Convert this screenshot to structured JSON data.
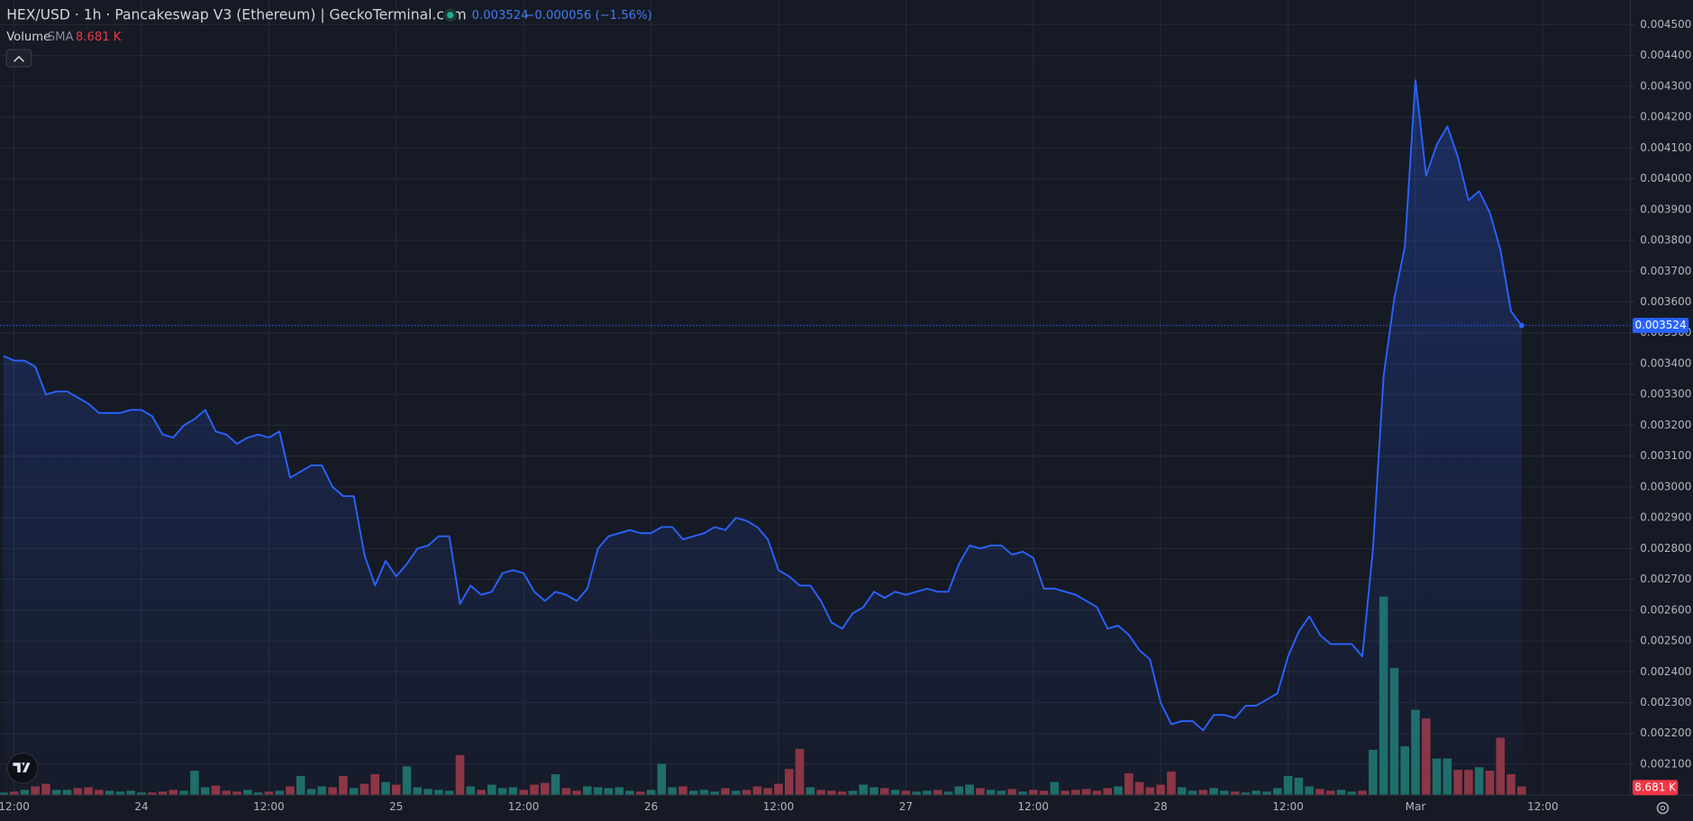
{
  "chart_data": {
    "type": "line",
    "title": "HEX/USD · 1h · Pancakeswap V3 (Ethereum) | GeckoTerminal.com",
    "change_label": "−0.000056 (−1.56%)",
    "volume_label": "Volume",
    "volume_sma_label": "SMA",
    "volume_sma": {
      "value": 8.681,
      "label": "8.681 K"
    },
    "categories": [
      null,
      "12:00",
      null,
      null,
      null,
      null,
      null,
      null,
      null,
      null,
      null,
      null,
      null,
      "24",
      null,
      null,
      null,
      null,
      null,
      null,
      null,
      null,
      null,
      null,
      null,
      "12:00",
      null,
      null,
      null,
      null,
      null,
      null,
      null,
      null,
      null,
      null,
      null,
      "25",
      null,
      null,
      null,
      null,
      null,
      null,
      null,
      null,
      null,
      null,
      null,
      "12:00",
      null,
      null,
      null,
      null,
      null,
      null,
      null,
      null,
      null,
      null,
      null,
      "26",
      null,
      null,
      null,
      null,
      null,
      null,
      null,
      null,
      null,
      null,
      null,
      "12:00",
      null,
      null,
      null,
      null,
      null,
      null,
      null,
      null,
      null,
      null,
      null,
      "27",
      null,
      null,
      null,
      null,
      null,
      null,
      null,
      null,
      null,
      null,
      null,
      "12:00",
      null,
      null,
      null,
      null,
      null,
      null,
      null,
      null,
      null,
      null,
      null,
      "28",
      null,
      null,
      null,
      null,
      null,
      null,
      null,
      null,
      null,
      null,
      null,
      "12:00",
      null,
      null,
      null,
      null,
      null,
      null,
      null,
      null,
      null,
      null,
      null,
      "Mar",
      null,
      null,
      null,
      null,
      null,
      null,
      null,
      null,
      null,
      null,
      null,
      "12:00"
    ],
    "series": [
      {
        "name": "HEX/USD",
        "color": "#2962ff",
        "values": [
          0.003425,
          0.00341,
          0.00341,
          0.00339,
          0.0033,
          0.00331,
          0.00331,
          0.00329,
          0.00327,
          0.00324,
          0.00324,
          0.00324,
          0.00325,
          0.00325,
          0.00323,
          0.00317,
          0.00316,
          0.0032,
          0.00322,
          0.00325,
          0.00318,
          0.00317,
          0.00314,
          0.00316,
          0.00317,
          0.00316,
          0.00318,
          0.00303,
          0.00305,
          0.00307,
          0.00307,
          0.003,
          0.00297,
          0.00297,
          0.00278,
          0.00268,
          0.00276,
          0.00271,
          0.00275,
          0.0028,
          0.00281,
          0.00284,
          0.00284,
          0.00262,
          0.00268,
          0.00265,
          0.00266,
          0.00272,
          0.00273,
          0.00272,
          0.00266,
          0.00263,
          0.00266,
          0.00265,
          0.00263,
          0.00267,
          0.0028,
          0.00284,
          0.00285,
          0.00286,
          0.00285,
          0.00285,
          0.00287,
          0.00287,
          0.00283,
          0.00284,
          0.00285,
          0.00287,
          0.00286,
          0.0029,
          0.00289,
          0.00287,
          0.00283,
          0.00273,
          0.00271,
          0.00268,
          0.00268,
          0.00263,
          0.00256,
          0.00254,
          0.00259,
          0.00261,
          0.00266,
          0.00264,
          0.00266,
          0.00265,
          0.00266,
          0.00267,
          0.00266,
          0.00266,
          0.00275,
          0.00281,
          0.0028,
          0.00281,
          0.00281,
          0.00278,
          0.00279,
          0.00277,
          0.00267,
          0.00267,
          0.00266,
          0.00265,
          0.00263,
          0.00261,
          0.00254,
          0.00255,
          0.00252,
          0.00247,
          0.00244,
          0.0023,
          0.00223,
          0.00224,
          0.00224,
          0.00221,
          0.00226,
          0.00226,
          0.00225,
          0.00229,
          0.00229,
          0.00231,
          0.00233,
          0.00245,
          0.00253,
          0.00258,
          0.00252,
          0.00249,
          0.00249,
          0.00249,
          0.00245,
          0.0028,
          0.00336,
          0.00361,
          0.00378,
          0.00432,
          0.00401,
          0.00411,
          0.00417,
          0.00407,
          0.00393,
          0.00396,
          0.00389,
          0.00377,
          0.00357,
          0.003524,
          null,
          null
        ]
      },
      {
        "name": "Volume",
        "up_color": "#1f6e66",
        "down_color": "#8e3542",
        "values": [
          3,
          4,
          6,
          10,
          13,
          6,
          6,
          8,
          9,
          6,
          5,
          4,
          5,
          3,
          3,
          4,
          6,
          5,
          28,
          9,
          11,
          5,
          4,
          6,
          3,
          4,
          5,
          10,
          22,
          7,
          10,
          9,
          22,
          8,
          13,
          24,
          15,
          12,
          33,
          9,
          7,
          6,
          5,
          46,
          10,
          6,
          12,
          8,
          9,
          6,
          12,
          14,
          24,
          8,
          5,
          10,
          9,
          8,
          9,
          5,
          4,
          6,
          36,
          9,
          10,
          5,
          6,
          4,
          8,
          5,
          6,
          10,
          8,
          13,
          30,
          53,
          9,
          6,
          5,
          4,
          5,
          12,
          9,
          8,
          6,
          5,
          4,
          5,
          6,
          4,
          10,
          12,
          8,
          6,
          5,
          7,
          4,
          6,
          5,
          15,
          5,
          6,
          7,
          5,
          8,
          10,
          25,
          15,
          9,
          12,
          27,
          9,
          5,
          6,
          8,
          5,
          4,
          3,
          5,
          4,
          8,
          22,
          20,
          10,
          7,
          5,
          6,
          4,
          5,
          52,
          228,
          146,
          56,
          98,
          88,
          42,
          42,
          29,
          29,
          32,
          28,
          66,
          24,
          10,
          null,
          null
        ]
      }
    ],
    "ylim": [
      0.002,
      0.00458
    ],
    "yticks": [
      {
        "value": 0.0021,
        "label": "0.002100"
      },
      {
        "value": 0.0022,
        "label": "0.002200"
      },
      {
        "value": 0.0023,
        "label": "0.002300"
      },
      {
        "value": 0.0024,
        "label": "0.002400"
      },
      {
        "value": 0.0025,
        "label": "0.002500"
      },
      {
        "value": 0.0026,
        "label": "0.002600"
      },
      {
        "value": 0.0027,
        "label": "0.002700"
      },
      {
        "value": 0.0028,
        "label": "0.002800"
      },
      {
        "value": 0.0029,
        "label": "0.002900"
      },
      {
        "value": 0.003,
        "label": "0.003000"
      },
      {
        "value": 0.0031,
        "label": "0.003100"
      },
      {
        "value": 0.0032,
        "label": "0.003200"
      },
      {
        "value": 0.0033,
        "label": "0.003300"
      },
      {
        "value": 0.0034,
        "label": "0.003400"
      },
      {
        "value": 0.0035,
        "label": "0.003500"
      },
      {
        "value": 0.0036,
        "label": "0.003600"
      },
      {
        "value": 0.0037,
        "label": "0.003700"
      },
      {
        "value": 0.0038,
        "label": "0.003800"
      },
      {
        "value": 0.0039,
        "label": "0.003900"
      },
      {
        "value": 0.004,
        "label": "0.004000"
      },
      {
        "value": 0.0041,
        "label": "0.004100"
      },
      {
        "value": 0.0042,
        "label": "0.004200"
      },
      {
        "value": 0.0043,
        "label": "0.004300"
      },
      {
        "value": 0.0044,
        "label": "0.004400"
      },
      {
        "value": 0.0045,
        "label": "0.004500"
      }
    ],
    "grid": true
  }
}
